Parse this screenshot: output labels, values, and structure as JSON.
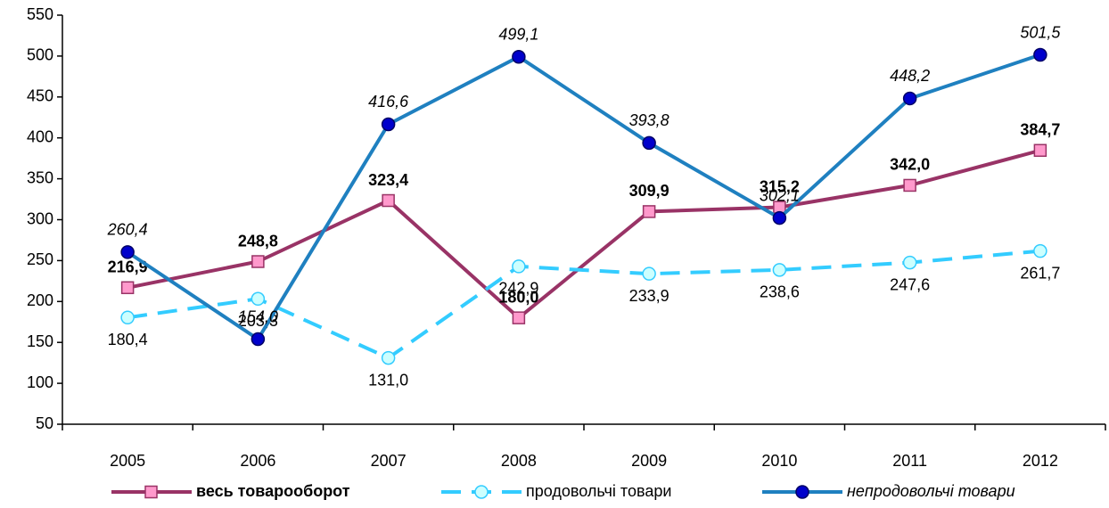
{
  "chart_data": {
    "type": "line",
    "categories": [
      "2005",
      "2006",
      "2007",
      "2008",
      "2009",
      "2010",
      "2011",
      "2012"
    ],
    "ylim": [
      50,
      550
    ],
    "yticks": [
      50,
      100,
      150,
      200,
      250,
      300,
      350,
      400,
      450,
      500,
      550
    ],
    "legend": "bottom",
    "series": [
      {
        "name": "весь товарооборот",
        "color": "#993366",
        "marker_color": "#ff99cc",
        "dash": false,
        "values": [
          216.9,
          248.8,
          323.4,
          180.0,
          309.9,
          315.2,
          342.0,
          384.7
        ],
        "value_labels": [
          "216,9",
          "248,8",
          "323,4",
          "180,0",
          "309,9",
          "315,2",
          "342,0",
          "384,7"
        ]
      },
      {
        "name": "продовольчі товари",
        "color": "#33ccff",
        "marker_color": "#ccffff",
        "dash": true,
        "values": [
          180.4,
          203.3,
          131.0,
          242.9,
          233.9,
          238.6,
          247.6,
          261.7
        ],
        "value_labels": [
          "180,4",
          "203,3",
          "131,0",
          "242,9",
          "233,9",
          "238,6",
          "247,6",
          "261,7"
        ]
      },
      {
        "name": "непродовольчі товари",
        "color": "#1f80c0",
        "marker_color": "#0000cc",
        "dash": false,
        "values": [
          260.4,
          154.0,
          416.6,
          499.1,
          393.8,
          302.1,
          448.2,
          501.5
        ],
        "value_labels": [
          "260,4",
          "154,0",
          "416,6",
          "499,1",
          "393,8",
          "302,1",
          "448,2",
          "501,5"
        ]
      }
    ]
  }
}
